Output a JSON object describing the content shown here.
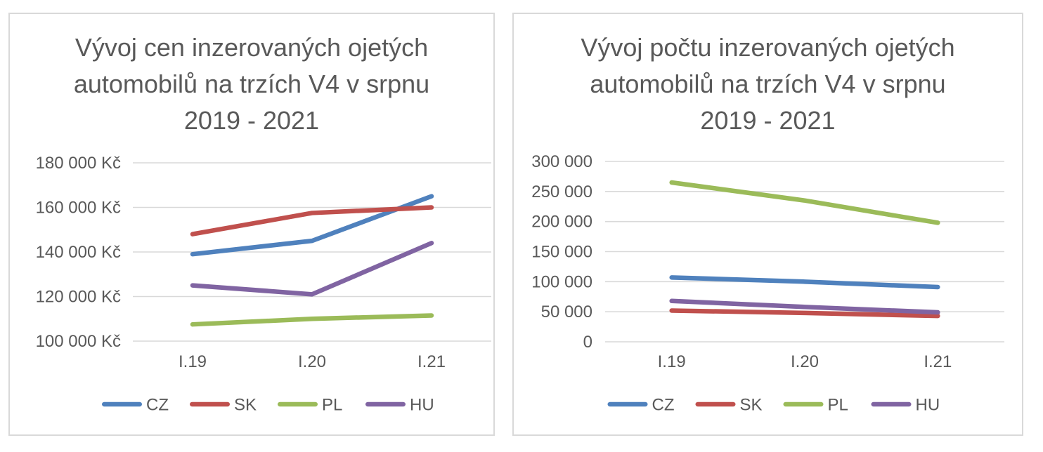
{
  "colors": {
    "text": "#595959",
    "grid": "#D9D9D9",
    "panel_border": "#D9D9D9",
    "series_cz": "#4F81BD",
    "series_sk": "#C0504D",
    "series_pl": "#9BBB59",
    "series_hu": "#8064A2"
  },
  "chart_data": [
    {
      "type": "line",
      "title": "Vývoj cen inzerovaných ojetých automobilů na trzích V4 v srpnu 2019 - 2021",
      "title_lines": [
        "Vývoj cen inzerovaných ojetých",
        "automobilů na trzích V4 v srpnu",
        "2019 - 2021"
      ],
      "categories": [
        "I.19",
        "I.20",
        "I.21"
      ],
      "series": [
        {
          "name": "CZ",
          "color": "#4F81BD",
          "values": [
            139000,
            145000,
            165000
          ]
        },
        {
          "name": "SK",
          "color": "#C0504D",
          "values": [
            148000,
            157500,
            160000
          ]
        },
        {
          "name": "PL",
          "color": "#9BBB59",
          "values": [
            107500,
            110000,
            111500
          ]
        },
        {
          "name": "HU",
          "color": "#8064A2",
          "values": [
            125000,
            121000,
            144000
          ]
        }
      ],
      "ylim": [
        100000,
        180000
      ],
      "ytick_step": 20000,
      "ytick_labels": [
        "100 000 Kč",
        "120 000 Kč",
        "140 000 Kč",
        "160 000 Kč",
        "180 000 Kč"
      ],
      "xlabel": "",
      "ylabel": "",
      "grid": true,
      "legend_position": "bottom"
    },
    {
      "type": "line",
      "title": "Vývoj počtu inzerovaných ojetých automobilů na trzích V4 v srpnu 2019 - 2021",
      "title_lines": [
        "Vývoj počtu inzerovaných ojetých",
        "automobilů na trzích V4 v srpnu",
        "2019 - 2021"
      ],
      "categories": [
        "I.19",
        "I.20",
        "I.21"
      ],
      "series": [
        {
          "name": "CZ",
          "color": "#4F81BD",
          "values": [
            107000,
            100000,
            91000
          ]
        },
        {
          "name": "SK",
          "color": "#C0504D",
          "values": [
            52000,
            48000,
            43000
          ]
        },
        {
          "name": "PL",
          "color": "#9BBB59",
          "values": [
            265000,
            235000,
            198000
          ]
        },
        {
          "name": "HU",
          "color": "#8064A2",
          "values": [
            68000,
            58000,
            49000
          ]
        }
      ],
      "ylim": [
        0,
        300000
      ],
      "ytick_step": 50000,
      "ytick_labels": [
        "0",
        "50 000",
        "100 000",
        "150 000",
        "200 000",
        "250 000",
        "300 000"
      ],
      "xlabel": "",
      "ylabel": "",
      "grid": true,
      "legend_position": "bottom"
    }
  ]
}
